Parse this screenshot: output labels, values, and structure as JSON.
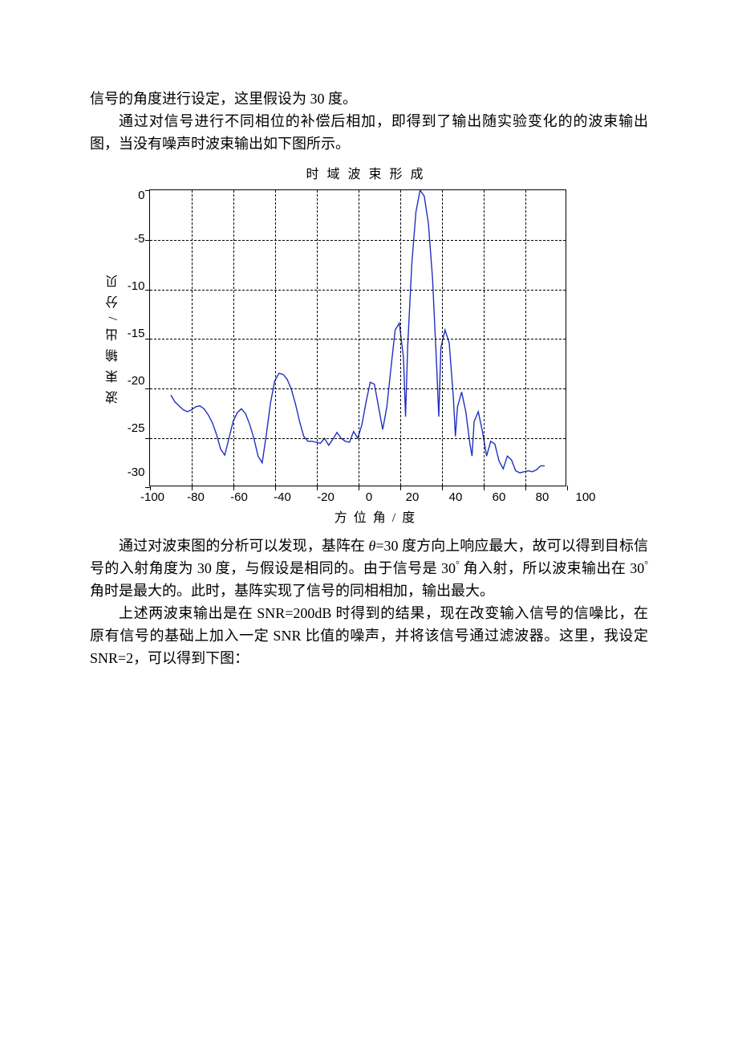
{
  "para1": "信号的角度进行设定，这里假设为 30 度。",
  "para2": "通过对信号进行不同相位的补偿后相加，即得到了输出随实验变化的的波束输出图，当没有噪声时波束输出如下图所示。",
  "chart": {
    "type": "line",
    "title": "时 域 波 束 形 成",
    "ylabel": "波 束 输 出 / 分 贝",
    "xlabel": "方 位 角 / 度",
    "xlim": [
      -100,
      100
    ],
    "ylim": [
      -30,
      0
    ],
    "xticks": [
      -100,
      -80,
      -60,
      -40,
      -20,
      0,
      20,
      40,
      60,
      80,
      100
    ],
    "yticks": [
      0,
      -5,
      -10,
      -15,
      -20,
      -25,
      -30
    ],
    "line_color": "#2030c0",
    "line_width": 1.4,
    "border_color": "#000000",
    "grid_color": "#000000",
    "grid_dash": true,
    "background_color": "#ffffff",
    "data": [
      [
        -90,
        -20.8
      ],
      [
        -88,
        -21.5
      ],
      [
        -86,
        -21.9
      ],
      [
        -84,
        -22.3
      ],
      [
        -82,
        -22.5
      ],
      [
        -80,
        -22.3
      ],
      [
        -78,
        -22.0
      ],
      [
        -76,
        -21.9
      ],
      [
        -74,
        -22.2
      ],
      [
        -72,
        -22.8
      ],
      [
        -70,
        -23.6
      ],
      [
        -68,
        -24.8
      ],
      [
        -66,
        -26.3
      ],
      [
        -64,
        -26.9
      ],
      [
        -62,
        -25.2
      ],
      [
        -60,
        -23.5
      ],
      [
        -58,
        -22.6
      ],
      [
        -56,
        -22.2
      ],
      [
        -54,
        -22.7
      ],
      [
        -52,
        -23.8
      ],
      [
        -50,
        -25.2
      ],
      [
        -48,
        -27.0
      ],
      [
        -46,
        -27.7
      ],
      [
        -44,
        -24.8
      ],
      [
        -42,
        -21.6
      ],
      [
        -40,
        -19.4
      ],
      [
        -38,
        -18.6
      ],
      [
        -36,
        -18.7
      ],
      [
        -34,
        -19.2
      ],
      [
        -32,
        -20.2
      ],
      [
        -30,
        -21.7
      ],
      [
        -28,
        -23.5
      ],
      [
        -26,
        -25.0
      ],
      [
        -24,
        -25.5
      ],
      [
        -22,
        -25.5
      ],
      [
        -20,
        -25.6
      ],
      [
        -18,
        -25.7
      ],
      [
        -16,
        -25.2
      ],
      [
        -14,
        -25.9
      ],
      [
        -12,
        -25.3
      ],
      [
        -10,
        -24.6
      ],
      [
        -8,
        -25.2
      ],
      [
        -6,
        -25.5
      ],
      [
        -4,
        -25.6
      ],
      [
        -2,
        -24.5
      ],
      [
        0,
        -25.2
      ],
      [
        2,
        -23.8
      ],
      [
        4,
        -21.5
      ],
      [
        6,
        -19.5
      ],
      [
        8,
        -19.7
      ],
      [
        10,
        -22.0
      ],
      [
        12,
        -24.3
      ],
      [
        14,
        -22.0
      ],
      [
        16,
        -18.0
      ],
      [
        18,
        -14.2
      ],
      [
        20,
        -13.5
      ],
      [
        22,
        -17.0
      ],
      [
        23,
        -23.0
      ],
      [
        24,
        -16.0
      ],
      [
        26,
        -7.5
      ],
      [
        28,
        -2.2
      ],
      [
        30,
        0.0
      ],
      [
        32,
        -0.6
      ],
      [
        34,
        -3.4
      ],
      [
        36,
        -9.0
      ],
      [
        38,
        -18.0
      ],
      [
        39,
        -23.0
      ],
      [
        40,
        -16.0
      ],
      [
        42,
        -14.2
      ],
      [
        44,
        -15.5
      ],
      [
        46,
        -21.0
      ],
      [
        47,
        -25.0
      ],
      [
        48,
        -22.0
      ],
      [
        50,
        -20.5
      ],
      [
        52,
        -22.5
      ],
      [
        54,
        -25.8
      ],
      [
        55,
        -27.0
      ],
      [
        56,
        -23.5
      ],
      [
        58,
        -22.5
      ],
      [
        60,
        -24.5
      ],
      [
        62,
        -27.0
      ],
      [
        64,
        -25.5
      ],
      [
        66,
        -25.8
      ],
      [
        68,
        -27.5
      ],
      [
        70,
        -28.3
      ],
      [
        72,
        -27.0
      ],
      [
        74,
        -27.4
      ],
      [
        76,
        -28.5
      ],
      [
        78,
        -28.7
      ],
      [
        80,
        -28.6
      ],
      [
        82,
        -28.5
      ],
      [
        84,
        -28.6
      ],
      [
        86,
        -28.4
      ],
      [
        88,
        -28.0
      ],
      [
        90,
        -28.0
      ]
    ]
  },
  "para3a": "通过对波束图的分析可以发现，基阵在 ",
  "para3b": "=30 度方向上响应最大，故可以得到目标信号的入射角度为 30 度，与假设是相同的。由于信号是 30",
  "para3c": " 角入射，所以波束输出在 30",
  "para3d": " 角时是最大的。此时，基阵实现了信号的同相相加，输出最大。",
  "para4": "上述两波束输出是在 SNR=200dB 时得到的结果，现在改变输入信号的信噪比，在原有信号的基础上加入一定 SNR 比值的噪声，并将该信号通过滤波器。这里，我设定 SNR=2，可以得到下图："
}
